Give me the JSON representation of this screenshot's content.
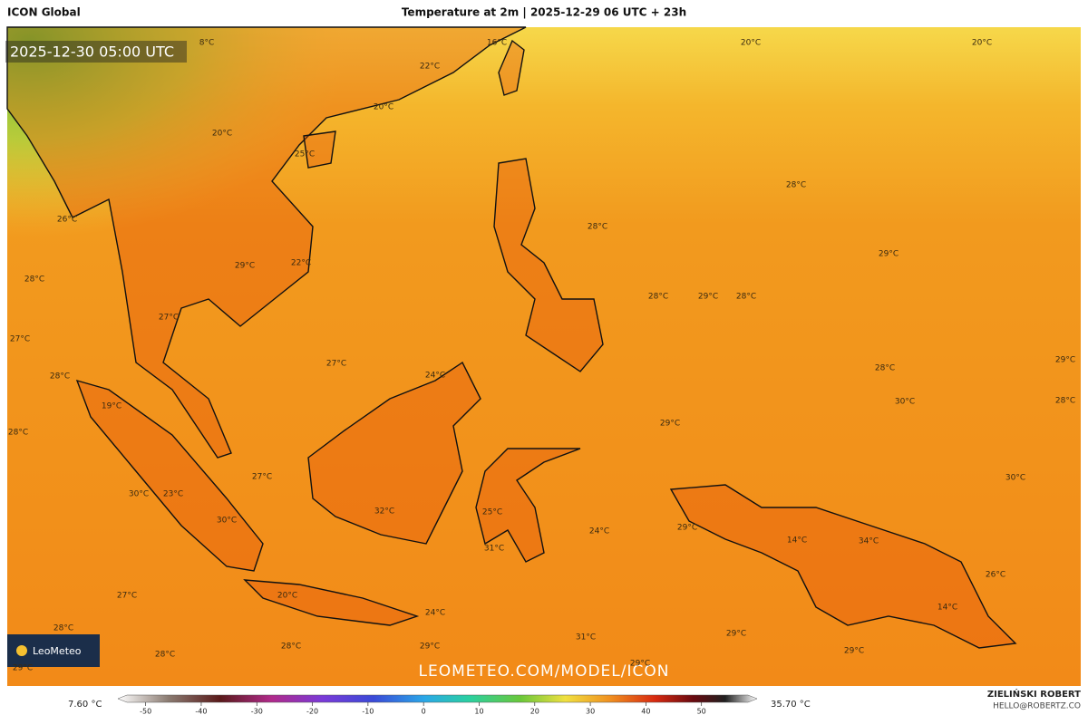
{
  "header": {
    "model": "ICON Global",
    "title": "Temperature at 2m | 2025-12-29 06 UTC + 23h"
  },
  "valid_time": "2025-12-30 05:00 UTC",
  "watermark": "LEOMETEO.COM/MODEL/ICON",
  "logo": "LeoMeteo",
  "legend": {
    "min_label": "7.60 °C",
    "max_label": "35.70 °C",
    "lim": [
      -55,
      60
    ],
    "ticks": [
      -50,
      -40,
      -30,
      -20,
      -10,
      0,
      10,
      20,
      30,
      40,
      50
    ]
  },
  "author": {
    "name": "ZIELIŃSKI ROBERT",
    "email": "HELLO@ROBERTZ.CO"
  },
  "map_labels": [
    "8°C",
    "16°C",
    "20°C",
    "20°C",
    "22°C",
    "20°C",
    "20°C",
    "25°C",
    "26°C",
    "28°C",
    "28°C",
    "29°C",
    "29°C",
    "22°C",
    "28°C",
    "28°C",
    "29°C",
    "28°C",
    "27°C",
    "27°C",
    "27°C",
    "24°C",
    "28°C",
    "29°C",
    "28°C",
    "30°C",
    "28°C",
    "19°C",
    "29°C",
    "28°C",
    "27°C",
    "30°C",
    "30°C",
    "23°C",
    "25°C",
    "32°C",
    "30°C",
    "24°C",
    "29°C",
    "14°C",
    "34°C",
    "31°C",
    "26°C",
    "27°C",
    "20°C",
    "24°C",
    "14°C",
    "28°C",
    "28°C",
    "28°C",
    "29°C",
    "31°C",
    "29°C",
    "29°C",
    "29°C",
    "29°C"
  ]
}
